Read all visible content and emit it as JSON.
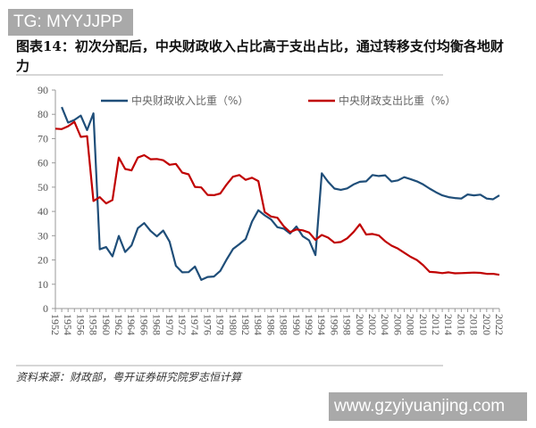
{
  "watermark_top": "TG: MYYJJPP",
  "watermark_bottom": "www.gzyiyuanjing.com",
  "title": "图表14：初次分配后，中央财政收入占比高于支出占比，通过转移支付均衡各地财力",
  "source": "资料来源：财政部，粤开证券研究院罗志恒计算",
  "chart_data": {
    "type": "line",
    "title": "图表14：初次分配后，中央财政收入占比高于支出占比，通过转移支付均衡各地财力",
    "xlabel": "",
    "ylabel": "",
    "ylim": [
      0,
      90
    ],
    "yticks": [
      0,
      10,
      20,
      30,
      40,
      50,
      60,
      70,
      80,
      90
    ],
    "xlim": [
      1952,
      2022
    ],
    "xticks": [
      1952,
      1954,
      1956,
      1958,
      1960,
      1962,
      1964,
      1966,
      1968,
      1970,
      1972,
      1974,
      1976,
      1978,
      1980,
      1982,
      1984,
      1986,
      1988,
      1990,
      1992,
      1994,
      1996,
      1998,
      2000,
      2002,
      2004,
      2006,
      2008,
      2010,
      2012,
      2014,
      2016,
      2018,
      2020,
      2022
    ],
    "grid": false,
    "legend": "top",
    "series": [
      {
        "name": "中央财政收入比重（%）",
        "color": "#1f4e79",
        "x_start": 1953,
        "values": [
          83.0,
          76.6,
          77.7,
          79.5,
          73.5,
          80.4,
          24.4,
          25.3,
          21.5,
          29.9,
          23.3,
          26.0,
          33.1,
          35.2,
          32.0,
          29.7,
          32.1,
          27.6,
          17.6,
          14.9,
          15.0,
          17.3,
          11.8,
          13.0,
          13.2,
          15.5,
          20.2,
          24.5,
          26.5,
          28.6,
          35.8,
          40.5,
          38.4,
          36.7,
          33.5,
          32.9,
          30.9,
          33.8,
          29.8,
          28.1,
          22.0,
          55.7,
          52.2,
          49.4,
          48.9,
          49.5,
          51.1,
          52.2,
          52.4,
          55.0,
          54.6,
          54.9,
          52.3,
          52.8,
          54.1,
          53.3,
          52.4,
          51.1,
          49.4,
          47.9,
          46.6,
          45.9,
          45.5,
          45.3,
          47.0,
          46.6,
          46.9,
          45.3,
          45.0,
          46.6
        ]
      },
      {
        "name": "中央财政支出比重（%）",
        "color": "#c00000",
        "x_start": 1952,
        "values": [
          74.1,
          73.9,
          75.1,
          76.9,
          70.7,
          71.0,
          44.3,
          45.9,
          43.3,
          44.7,
          62.2,
          57.5,
          56.9,
          62.2,
          63.2,
          61.5,
          61.6,
          61.1,
          59.2,
          59.6,
          56.0,
          55.3,
          50.1,
          49.9,
          46.8,
          46.7,
          47.4,
          51.1,
          54.3,
          55.0,
          53.0,
          53.9,
          52.5,
          39.7,
          37.9,
          37.4,
          33.9,
          31.5,
          32.6,
          32.2,
          31.3,
          28.3,
          30.3,
          29.2,
          27.1,
          27.4,
          28.9,
          31.5,
          34.7,
          30.5,
          30.7,
          30.1,
          27.7,
          25.9,
          24.7,
          23.0,
          21.3,
          20.0,
          17.8,
          15.1,
          14.9,
          14.6,
          14.9,
          14.5,
          14.6,
          14.7,
          14.8,
          14.7,
          14.3,
          14.3,
          13.9
        ]
      }
    ]
  }
}
